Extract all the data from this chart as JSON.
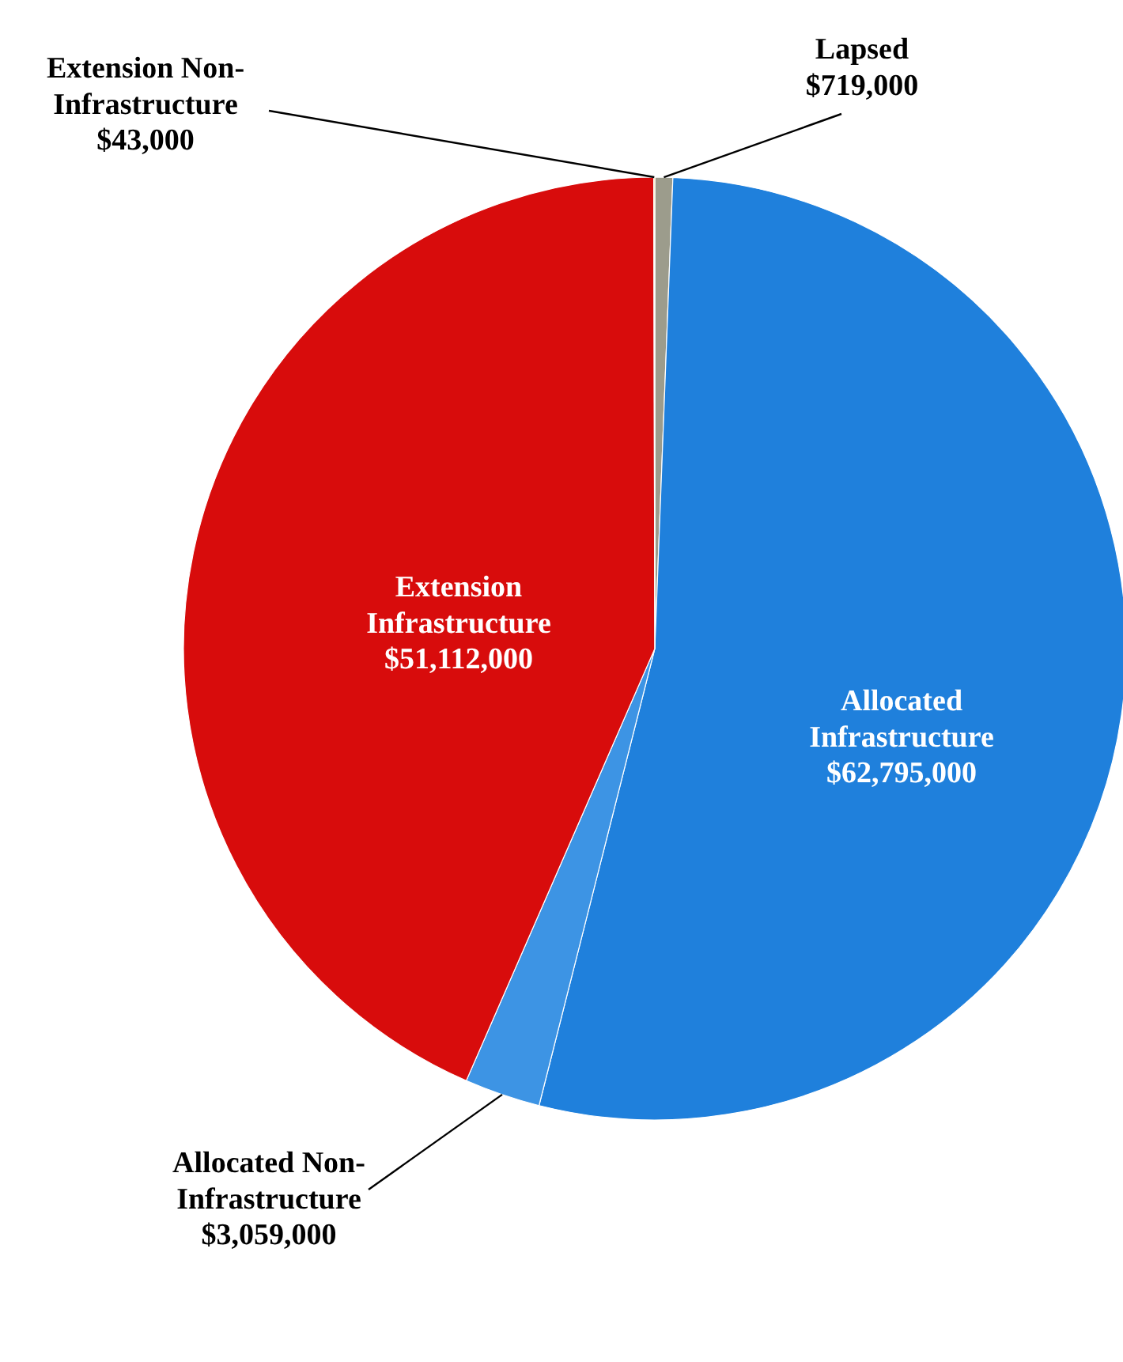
{
  "chart_data": {
    "type": "pie",
    "categories": [
      "Lapsed",
      "Allocated Infrastructure",
      "Allocated Non-Infrastructure",
      "Extension Infrastructure",
      "Extension Non-Infrastructure"
    ],
    "values": [
      719000,
      62795000,
      3059000,
      51112000,
      43000
    ],
    "value_labels": [
      "$719,000",
      "$62,795,000",
      "$3,059,000",
      "$51,112,000",
      "$43,000"
    ],
    "colors": [
      "#9c9c8c",
      "#1f80dc",
      "#3d94e4",
      "#d80c0c",
      "#e8c000"
    ],
    "data_labels": true
  }
}
